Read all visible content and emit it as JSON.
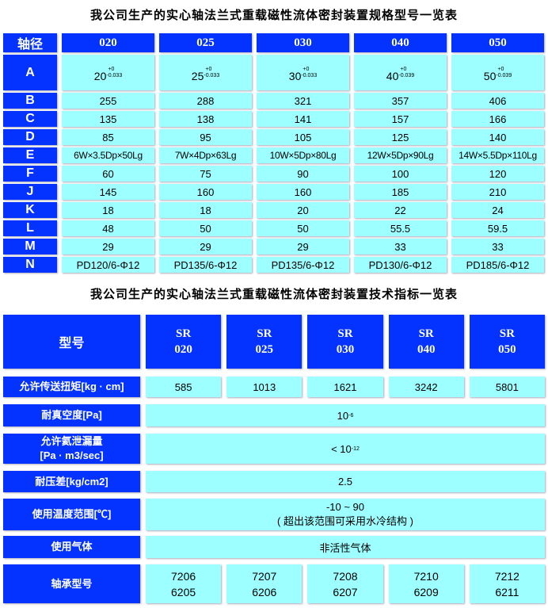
{
  "spec_table": {
    "title": "我公司生产的实心轴法兰式重载磁性流体密封装置规格型号一览表",
    "header_label": "轴径",
    "sizes": [
      "020",
      "025",
      "030",
      "040",
      "050"
    ],
    "tolerance_row": {
      "label": "A",
      "cells": [
        {
          "base": "20",
          "upper": "+0",
          "lower": "-0.033"
        },
        {
          "base": "25",
          "upper": "+0",
          "lower": "-0.033"
        },
        {
          "base": "30",
          "upper": "+0",
          "lower": "-0.033"
        },
        {
          "base": "40",
          "upper": "+0",
          "lower": "-0.039"
        },
        {
          "base": "50",
          "upper": "+0",
          "lower": "-0.039"
        }
      ]
    },
    "rows": [
      {
        "label": "B",
        "values": [
          "255",
          "288",
          "321",
          "357",
          "406"
        ]
      },
      {
        "label": "C",
        "values": [
          "135",
          "138",
          "141",
          "157",
          "166"
        ]
      },
      {
        "label": "D",
        "values": [
          "85",
          "95",
          "105",
          "125",
          "140"
        ]
      },
      {
        "label": "E",
        "values": [
          "6W×3.5Dp×50Lg",
          "7W×4Dp×63Lg",
          "10W×5Dp×80Lg",
          "12W×5Dp×90Lg",
          "14W×5.5Dp×110Lg"
        ]
      },
      {
        "label": "F",
        "values": [
          "60",
          "75",
          "90",
          "100",
          "120"
        ]
      },
      {
        "label": "J",
        "values": [
          "145",
          "160",
          "160",
          "185",
          "210"
        ]
      },
      {
        "label": "K",
        "values": [
          "18",
          "18",
          "20",
          "22",
          "24"
        ]
      },
      {
        "label": "L",
        "values": [
          "48",
          "50",
          "50",
          "55.5",
          "59.5"
        ]
      },
      {
        "label": "M",
        "values": [
          "29",
          "29",
          "29",
          "33",
          "33"
        ]
      },
      {
        "label": "N",
        "values": [
          "PD120/6-Φ12",
          "PD135/6-Φ12",
          "PD135/6-Φ12",
          "PD130/6-Φ12",
          "PD185/6-Φ12"
        ]
      }
    ]
  },
  "tech_table": {
    "title": "我公司生产的实心轴法兰式重载磁性流体密封装置技术指标一览表",
    "header_label": "型号",
    "models": [
      {
        "a": "SR",
        "b": "020"
      },
      {
        "a": "SR",
        "b": "025"
      },
      {
        "a": "SR",
        "b": "030"
      },
      {
        "a": "SR",
        "b": "040"
      },
      {
        "a": "SR",
        "b": "050"
      }
    ],
    "torque": {
      "label": "允许传送扭矩[kg · cm]",
      "values": [
        "585",
        "1013",
        "1621",
        "3242",
        "5801"
      ]
    },
    "vacuum": {
      "label": "耐真空度[Pa]",
      "base": "10",
      "exp": "-6"
    },
    "leak": {
      "label1": "允许氦泄漏量",
      "label2": "[Pa · m3/sec]",
      "prefix": "< 10",
      "exp": "-12"
    },
    "pressure": {
      "label": "耐压差[kg/cm2]",
      "value": "2.5"
    },
    "temperature": {
      "label": "使用温度范围[℃]",
      "value": "-10 ~ 90",
      "note": "( 超出该范围可采用水冷结构 )"
    },
    "gas": {
      "label": "使用气体",
      "value": "非活性气体"
    },
    "bearing": {
      "label": "轴承型号",
      "values": [
        [
          "7206",
          "6205"
        ],
        [
          "7207",
          "6206"
        ],
        [
          "7208",
          "6207"
        ],
        [
          "7210",
          "6209"
        ],
        [
          "7212",
          "6211"
        ]
      ]
    }
  },
  "colors": {
    "header_blue": "#0433FF",
    "cell_cyan": "#9DFFFF"
  }
}
